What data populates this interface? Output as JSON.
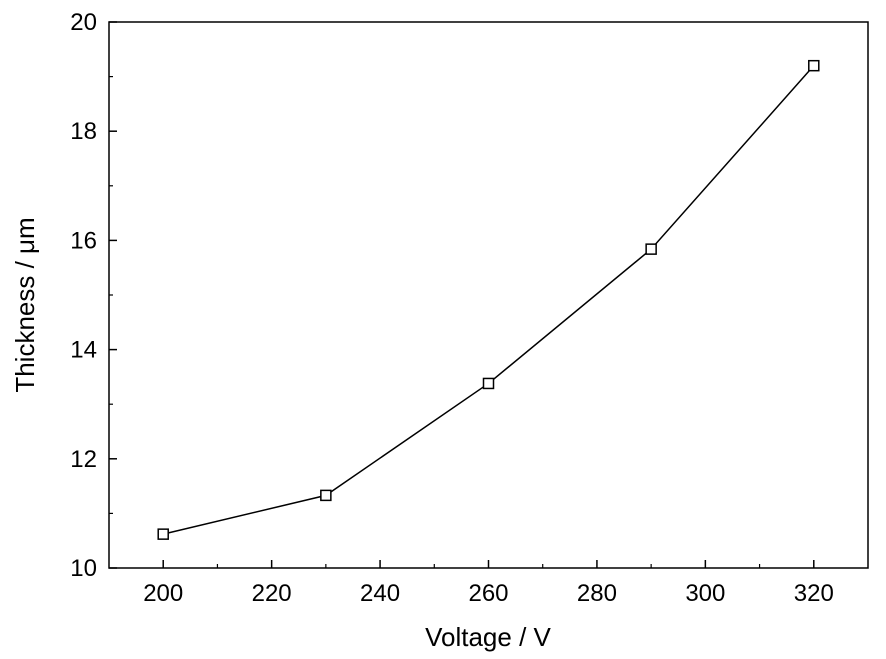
{
  "chart_data": {
    "type": "line",
    "xlabel": "Voltage / V",
    "ylabel": "Thickness / μm",
    "xlim": [
      190,
      330
    ],
    "ylim": [
      10,
      20
    ],
    "x_ticks": [
      200,
      220,
      240,
      260,
      280,
      300,
      320
    ],
    "y_ticks": [
      10,
      12,
      14,
      16,
      18,
      20
    ],
    "grid": false,
    "marker": "open-square",
    "line_color": "#000000",
    "series": [
      {
        "x": [
          200,
          230,
          260,
          290,
          320
        ],
        "y": [
          10.62,
          11.33,
          13.38,
          15.84,
          19.2
        ]
      }
    ]
  }
}
